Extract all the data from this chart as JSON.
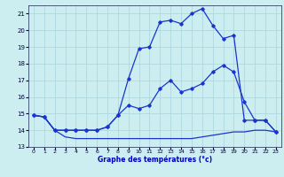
{
  "background_color": "#cceef0",
  "grid_color": "#aad4dc",
  "line_color": "#1a35cc",
  "xlabel": "Graphe des températures (°c)",
  "xlabel_color": "#0000bb",
  "xlim": [
    0,
    23
  ],
  "ylim": [
    13,
    21.5
  ],
  "yticks": [
    13,
    14,
    15,
    16,
    17,
    18,
    19,
    20,
    21
  ],
  "xticks": [
    0,
    1,
    2,
    3,
    4,
    5,
    6,
    7,
    8,
    9,
    10,
    11,
    12,
    13,
    14,
    15,
    16,
    17,
    18,
    19,
    20,
    21,
    22,
    23
  ],
  "line1_x": [
    0,
    1,
    2,
    3,
    4,
    5,
    6,
    7,
    8,
    9,
    10,
    11,
    12,
    13,
    14,
    15,
    16,
    17,
    18,
    19,
    20,
    21,
    22,
    23
  ],
  "line1_y": [
    14.9,
    14.8,
    14.0,
    14.0,
    14.0,
    14.0,
    14.0,
    14.2,
    14.9,
    15.5,
    15.3,
    15.5,
    16.5,
    17.0,
    16.3,
    16.5,
    16.8,
    17.5,
    17.9,
    17.5,
    15.7,
    14.6,
    14.6,
    13.9
  ],
  "line2_x": [
    0,
    1,
    2,
    3,
    4,
    5,
    6,
    7,
    8,
    9,
    10,
    11,
    12,
    13,
    14,
    15,
    16,
    17,
    18,
    19,
    20,
    21,
    22,
    23
  ],
  "line2_y": [
    14.9,
    14.8,
    14.0,
    13.6,
    13.5,
    13.5,
    13.5,
    13.5,
    13.5,
    13.5,
    13.5,
    13.5,
    13.5,
    13.5,
    13.5,
    13.5,
    13.6,
    13.7,
    13.8,
    13.9,
    13.9,
    14.0,
    14.0,
    13.9
  ],
  "line3_x": [
    0,
    1,
    2,
    3,
    4,
    5,
    6,
    7,
    8,
    9,
    10,
    11,
    12,
    13,
    14,
    15,
    16,
    17,
    18,
    19,
    20,
    21,
    22,
    23
  ],
  "line3_y": [
    14.9,
    14.8,
    14.0,
    14.0,
    14.0,
    14.0,
    14.0,
    14.2,
    14.9,
    17.1,
    18.9,
    19.0,
    20.5,
    20.6,
    20.4,
    21.0,
    21.3,
    20.3,
    19.5,
    19.7,
    14.6,
    14.6,
    14.6,
    13.9
  ]
}
